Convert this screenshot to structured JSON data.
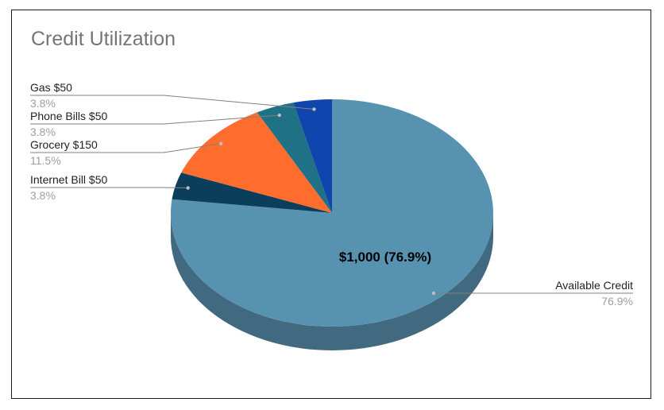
{
  "chart_data": {
    "type": "pie",
    "title": "Credit Utilization",
    "style": "3d",
    "center_label": "$1,000 (76.9%)",
    "slices": [
      {
        "label": "Available Credit",
        "name": "Available Credit",
        "value": 1000,
        "percent": "76.9%",
        "color": "#5792b1",
        "side_color": "#416a80"
      },
      {
        "label": "Internet Bill $50",
        "name": "Internet Bill",
        "value": 50,
        "percent": "3.8%",
        "color": "#0a3e5a",
        "side_color": "#062c40"
      },
      {
        "label": "Grocery $150",
        "name": "Grocery",
        "value": 150,
        "percent": "11.5%",
        "color": "#ff6d2e",
        "side_color": "#bb4f21"
      },
      {
        "label": "Phone Bills $50",
        "name": "Phone Bills",
        "value": 50,
        "percent": "3.8%",
        "color": "#1f7285",
        "side_color": "#155160"
      },
      {
        "label": "Gas $50",
        "name": "Gas",
        "value": 50,
        "percent": "3.8%",
        "color": "#0f45ad",
        "side_color": "#0a317a"
      }
    ],
    "legend": "none"
  }
}
